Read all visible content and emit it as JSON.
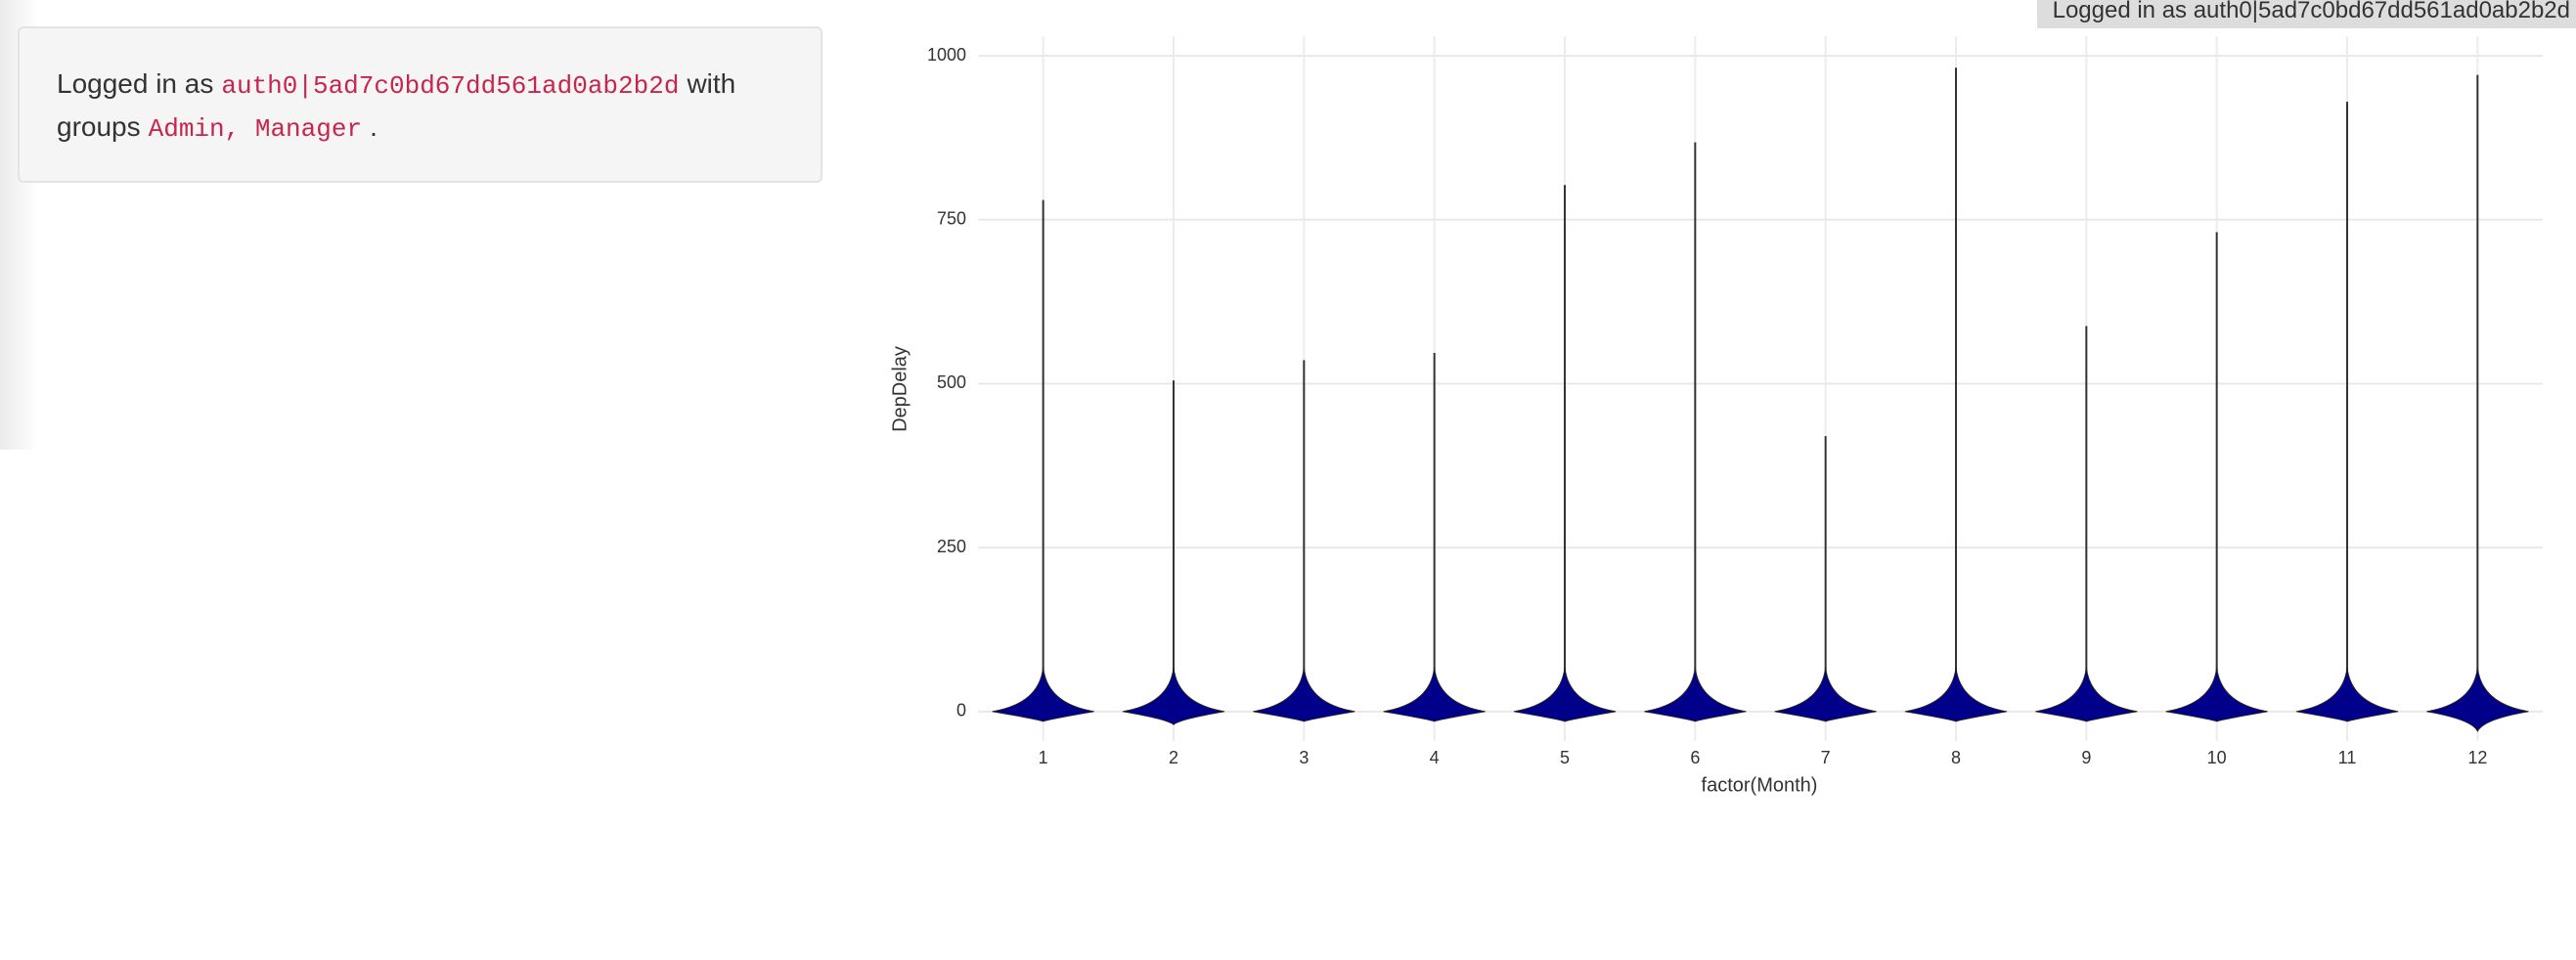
{
  "panel": {
    "prefix": "Logged in as",
    "user": "auth0|5ad7c0bd67dd561ad0ab2b2d",
    "middle": "with groups",
    "groups": "Admin, Manager",
    "suffix": "."
  },
  "badge": "Logged in as auth0|5ad7c0bd67dd561ad0ab2b2d",
  "chart_data": {
    "type": "violin",
    "x_label": "factor(Month)",
    "y_label": "DepDelay",
    "categories": [
      "1",
      "2",
      "3",
      "4",
      "5",
      "6",
      "7",
      "8",
      "9",
      "10",
      "11",
      "12"
    ],
    "values": [
      780,
      505,
      536,
      547,
      803,
      868,
      420,
      982,
      588,
      731,
      930,
      971
    ],
    "min": [
      -15,
      -20,
      -15,
      -15,
      -15,
      -15,
      -15,
      -15,
      -15,
      -15,
      -15,
      -30
    ],
    "color": "#00008b",
    "ylim": [
      -45,
      1030
    ],
    "yticks": [
      0,
      250,
      500,
      750,
      1000
    ],
    "grid": true
  }
}
